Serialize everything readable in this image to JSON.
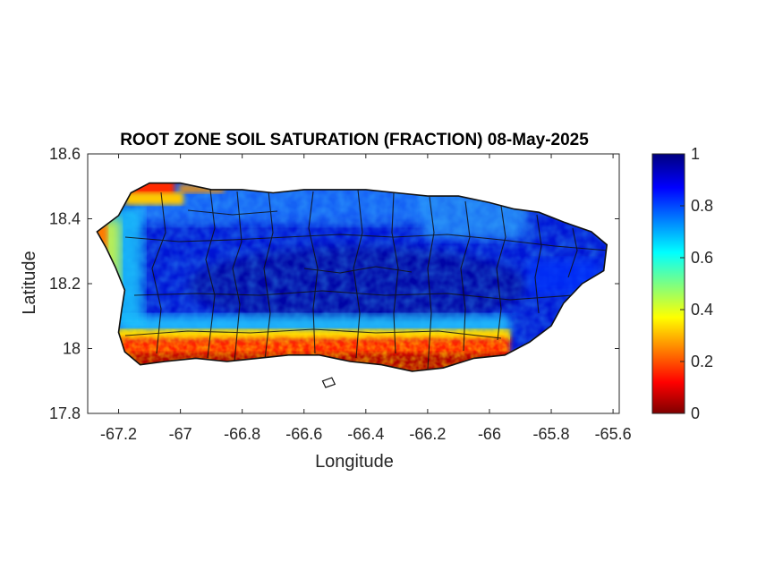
{
  "chart_data": {
    "type": "heatmap",
    "title": "ROOT ZONE SOIL SATURATION (FRACTION) 08-May-2025",
    "xlabel": "Longitude",
    "ylabel": "Latitude",
    "xlim": [
      -67.3,
      -65.58
    ],
    "ylim": [
      17.8,
      18.6
    ],
    "x_ticks": [
      -67.2,
      -67,
      -66.8,
      -66.6,
      -66.4,
      -66.2,
      -66,
      -65.8,
      -65.6
    ],
    "x_tick_labels": [
      "-67.2",
      "-67",
      "-66.8",
      "-66.6",
      "-66.4",
      "-66.2",
      "-66",
      "-65.8",
      "-65.6"
    ],
    "y_ticks": [
      17.8,
      18,
      18.2,
      18.4,
      18.6
    ],
    "y_tick_labels": [
      "17.8",
      "18",
      "18.2",
      "18.4",
      "18.6"
    ],
    "colorbar": {
      "range": [
        0,
        1
      ],
      "ticks": [
        0,
        0.2,
        0.4,
        0.6,
        0.8,
        1
      ],
      "tick_labels": [
        "0",
        "0.2",
        "0.4",
        "0.6",
        "0.8",
        "1"
      ],
      "colormap": "jet",
      "colors": [
        "#7f0000",
        "#ff0000",
        "#ffff00",
        "#00ffff",
        "#0000ff",
        "#00007f"
      ]
    },
    "region": "Puerto Rico",
    "description_of_field": "low saturation (0-0.3) along southern and northwestern coasts; high saturation (0.8-1.0) across interior and east",
    "island_outline": [
      [
        -67.27,
        18.36
      ],
      [
        -67.2,
        18.41
      ],
      [
        -67.16,
        18.48
      ],
      [
        -67.1,
        18.51
      ],
      [
        -67.0,
        18.51
      ],
      [
        -66.9,
        18.49
      ],
      [
        -66.8,
        18.49
      ],
      [
        -66.7,
        18.48
      ],
      [
        -66.6,
        18.49
      ],
      [
        -66.5,
        18.49
      ],
      [
        -66.4,
        18.49
      ],
      [
        -66.3,
        18.48
      ],
      [
        -66.2,
        18.47
      ],
      [
        -66.1,
        18.47
      ],
      [
        -66.0,
        18.45
      ],
      [
        -65.92,
        18.43
      ],
      [
        -65.84,
        18.42
      ],
      [
        -65.76,
        18.39
      ],
      [
        -65.67,
        18.36
      ],
      [
        -65.62,
        18.32
      ],
      [
        -65.63,
        18.24
      ],
      [
        -65.7,
        18.2
      ],
      [
        -65.76,
        18.14
      ],
      [
        -65.8,
        18.07
      ],
      [
        -65.87,
        18.02
      ],
      [
        -65.95,
        17.98
      ],
      [
        -66.05,
        17.97
      ],
      [
        -66.15,
        17.94
      ],
      [
        -66.25,
        17.93
      ],
      [
        -66.35,
        17.95
      ],
      [
        -66.45,
        17.96
      ],
      [
        -66.55,
        17.98
      ],
      [
        -66.65,
        17.98
      ],
      [
        -66.75,
        17.97
      ],
      [
        -66.85,
        17.96
      ],
      [
        -66.95,
        17.97
      ],
      [
        -67.05,
        17.96
      ],
      [
        -67.13,
        17.95
      ],
      [
        -67.18,
        17.99
      ],
      [
        -67.2,
        18.05
      ],
      [
        -67.19,
        18.12
      ],
      [
        -67.18,
        18.18
      ],
      [
        -67.21,
        18.25
      ],
      [
        -67.24,
        18.31
      ]
    ],
    "caja_de_muertos_outline": [
      [
        -66.54,
        17.9
      ],
      [
        -66.51,
        17.91
      ],
      [
        -66.5,
        17.89
      ],
      [
        -66.53,
        17.88
      ]
    ]
  }
}
